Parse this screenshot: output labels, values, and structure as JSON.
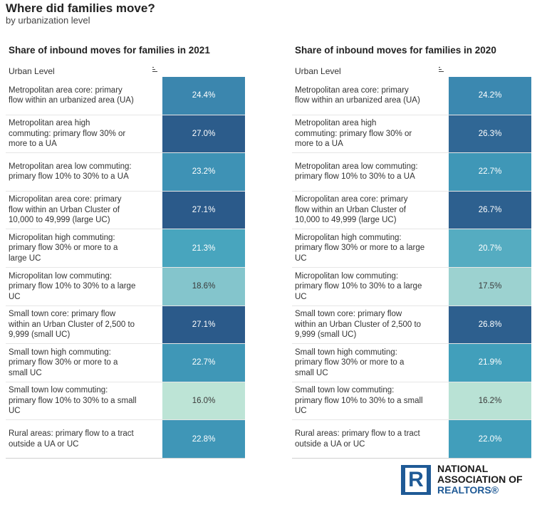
{
  "header": {
    "title": "Where did families move?",
    "subtitle": "by urbanization level"
  },
  "chart_data": [
    {
      "type": "heatmap",
      "title": "Share of inbound moves for families in 2021",
      "column_header": "Urban Level",
      "categories": [
        "Metropolitan area core: primary flow within an urbanized area (UA)",
        "Metropolitan area high commuting: primary flow 30% or more to a UA",
        "Metropolitan area low commuting: primary flow 10% to 30% to a UA",
        "Micropolitan area core: primary flow within an Urban Cluster of 10,000 to 49,999 (large UC)",
        "Micropolitan high commuting: primary flow 30% or more to a large UC",
        "Micropolitan low commuting: primary flow 10% to 30% to a large UC",
        "Small town core: primary flow within an Urban Cluster of 2,500 to 9,999 (small UC)",
        "Small town high commuting: primary flow 30% or more to a small UC",
        "Small town low commuting: primary flow 10% to 30% to a small UC",
        "Rural areas: primary flow to a tract outside a UA or UC"
      ],
      "label_lines": [
        [
          "Metropolitan area core: primary",
          "flow within an urbanized area (UA)"
        ],
        [
          "Metropolitan area high",
          "commuting: primary flow 30% or",
          "more to a UA"
        ],
        [
          "Metropolitan area low commuting:",
          "primary flow 10% to 30% to a UA"
        ],
        [
          "Micropolitan area core: primary",
          "flow within an Urban Cluster of",
          "10,000 to 49,999 (large UC)"
        ],
        [
          "Micropolitan high commuting:",
          "primary flow 30% or more to a",
          "large UC"
        ],
        [
          "Micropolitan low commuting:",
          "primary flow 10% to 30% to a large",
          "UC"
        ],
        [
          "Small town core: primary flow",
          "within an Urban Cluster of 2,500 to",
          "9,999 (small UC)"
        ],
        [
          "Small town high commuting:",
          "primary flow 30% or more to a",
          "small UC"
        ],
        [
          "Small town low commuting:",
          "primary flow 10% to 30% to a small",
          "UC"
        ],
        [
          "Rural areas: primary flow to a tract",
          "outside a UA or UC"
        ]
      ],
      "values": [
        24.4,
        27.0,
        23.2,
        27.1,
        21.3,
        18.6,
        27.1,
        22.7,
        16.0,
        22.8
      ],
      "value_labels": [
        "24.4%",
        "27.0%",
        "23.2%",
        "27.1%",
        "21.3%",
        "18.6%",
        "27.1%",
        "22.7%",
        "16.0%",
        "22.8%"
      ]
    },
    {
      "type": "heatmap",
      "title": "Share of inbound moves for families in 2020",
      "column_header": "Urban Level",
      "categories": [
        "Metropolitan area core: primary flow within an urbanized area (UA)",
        "Metropolitan area high commuting: primary flow 30% or more to a UA",
        "Metropolitan area low commuting: primary flow 10% to 30% to a UA",
        "Micropolitan area core: primary flow within an Urban Cluster of 10,000 to 49,999 (large UC)",
        "Micropolitan high commuting: primary flow 30% or more to a large UC",
        "Micropolitan low commuting: primary flow 10% to 30% to a large UC",
        "Small town core: primary flow within an Urban Cluster of 2,500 to 9,999 (small UC)",
        "Small town high commuting: primary flow 30% or more to a small UC",
        "Small town low commuting: primary flow 10% to 30% to a small UC",
        "Rural areas: primary flow to a tract outside a UA or UC"
      ],
      "label_lines": [
        [
          "Metropolitan area core: primary",
          "flow within an urbanized area (UA)"
        ],
        [
          "Metropolitan area high",
          "commuting: primary flow 30% or",
          "more to a UA"
        ],
        [
          "Metropolitan area low commuting:",
          "primary flow 10% to 30% to a UA"
        ],
        [
          "Micropolitan area core: primary",
          "flow within an Urban Cluster of",
          "10,000 to 49,999 (large UC)"
        ],
        [
          "Micropolitan high commuting:",
          "primary flow 30% or more to a large",
          "UC"
        ],
        [
          "Micropolitan low commuting:",
          "primary flow 10% to 30% to a large",
          "UC"
        ],
        [
          "Small town core: primary flow",
          "within an Urban Cluster of 2,500 to",
          "9,999 (small UC)"
        ],
        [
          "Small town high commuting:",
          "primary flow 30% or more to a",
          "small UC"
        ],
        [
          "Small town low commuting:",
          "primary flow 10% to 30% to a small",
          "UC"
        ],
        [
          "Rural areas: primary flow to a tract",
          "outside a UA or UC"
        ]
      ],
      "values": [
        24.2,
        26.3,
        22.7,
        26.7,
        20.7,
        17.5,
        26.8,
        21.9,
        16.2,
        22.0
      ],
      "value_labels": [
        "24.2%",
        "26.3%",
        "22.7%",
        "26.7%",
        "20.7%",
        "17.5%",
        "26.8%",
        "21.9%",
        "16.2%",
        "22.0%"
      ]
    }
  ],
  "color_scale": {
    "low_value": 16.0,
    "high_value": 27.1,
    "colors": [
      "#bde4d6",
      "#80c3cb",
      "#42a2bd",
      "#3b87af",
      "#2b5a8a"
    ]
  },
  "logo": {
    "icon": "realtor-r-logo-icon",
    "letter": "R",
    "line1": "NATIONAL",
    "line2": "ASSOCIATION OF",
    "line3": "REALTORS®"
  }
}
